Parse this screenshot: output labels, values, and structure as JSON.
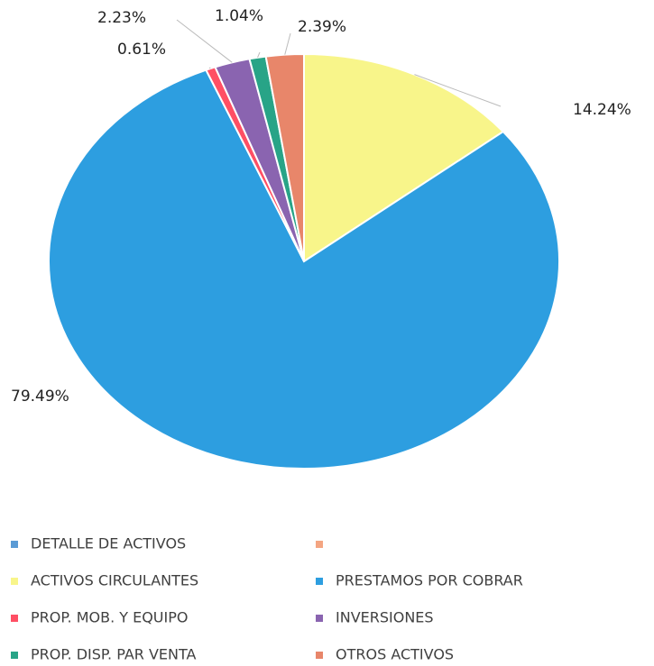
{
  "chart_data": {
    "type": "pie",
    "categories": [
      "ACTIVOS CIRCULANTES",
      "PRESTAMOS POR COBRAR",
      "PROP. MOB. Y EQUIPO",
      "INVERSIONES",
      "PROP. DISP. PAR VENTA",
      "OTROS ACTIVOS"
    ],
    "values": [
      14.24,
      79.49,
      0.61,
      2.23,
      1.04,
      2.39
    ],
    "value_labels": [
      "14.24%",
      "79.49%",
      "0.61%",
      "2.23%",
      "1.04%",
      "2.39%"
    ],
    "colors": [
      "#f8f58a",
      "#2d9ee0",
      "#ff4f64",
      "#8a64b0",
      "#28a487",
      "#e8866a"
    ],
    "legend_extra": [
      {
        "name": "DETALLE DE ACTIVOS",
        "color": "#5b9bd5"
      },
      {
        "name": null,
        "color": "#f4a582"
      }
    ]
  }
}
